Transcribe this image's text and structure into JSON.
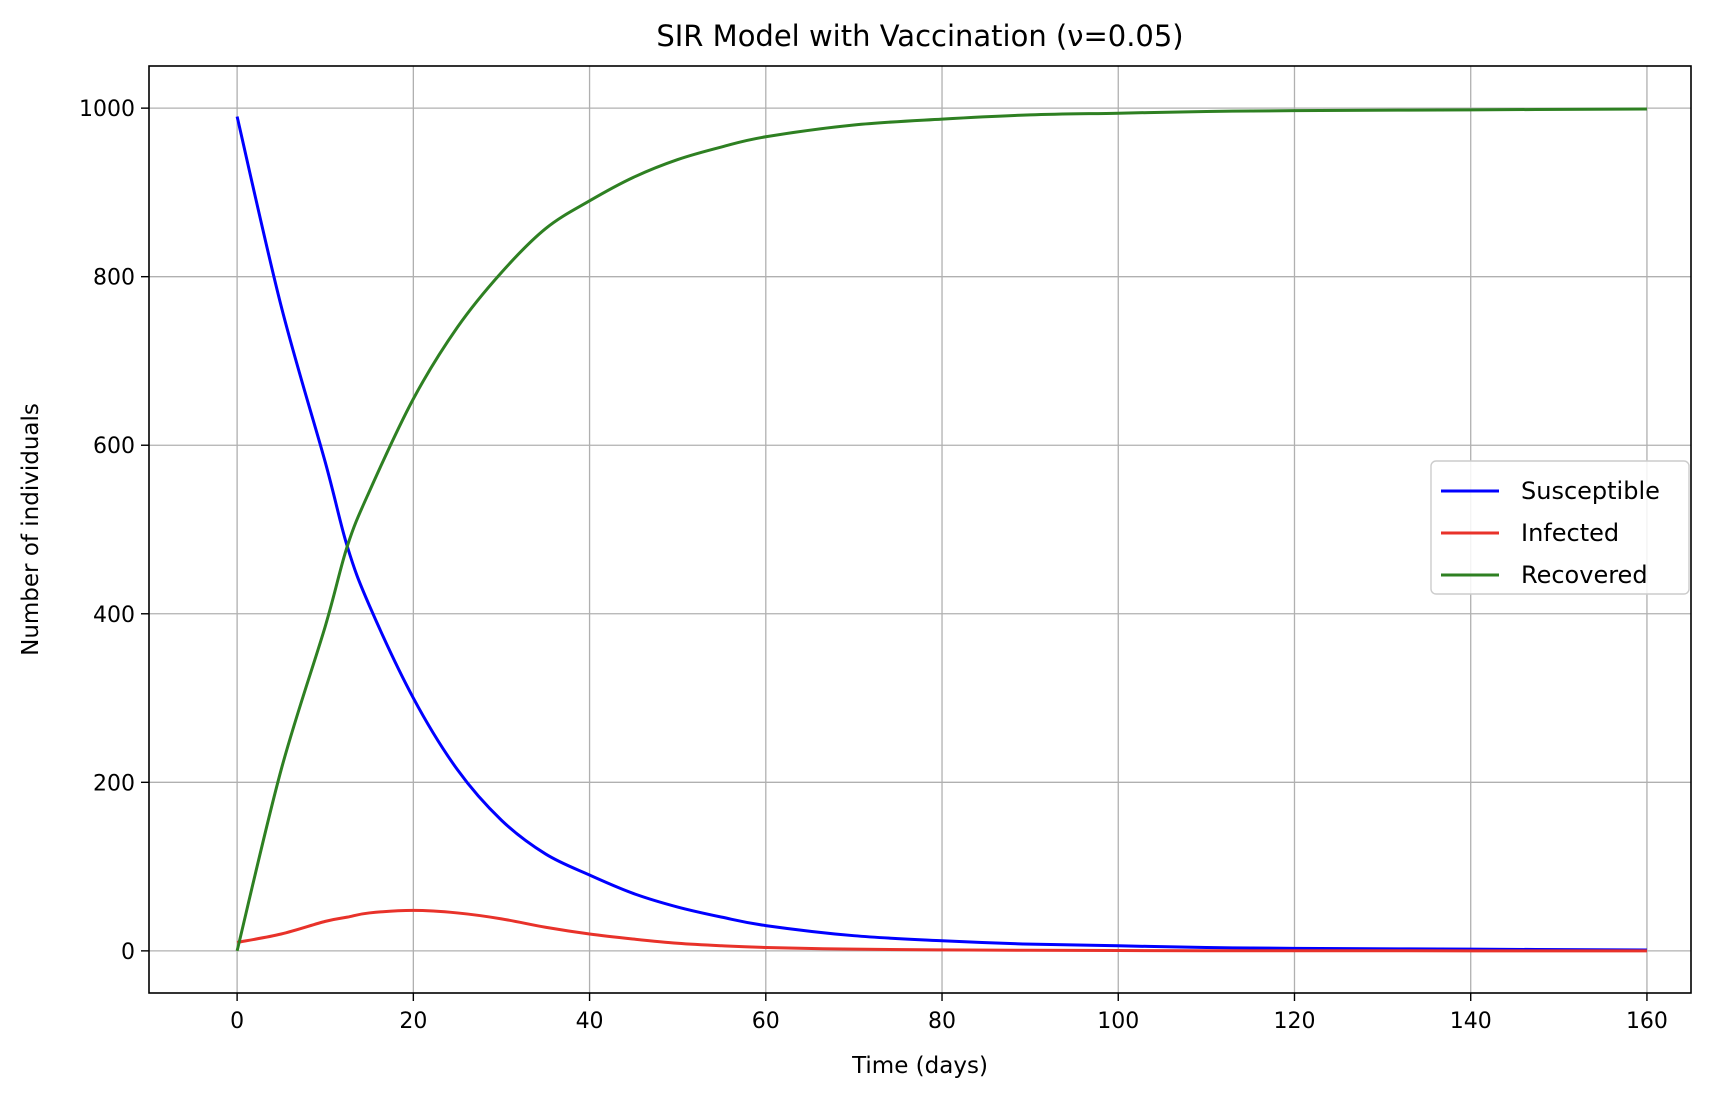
{
  "chart_data": {
    "type": "line",
    "title": "SIR Model with Vaccination (ν=0.05)",
    "xlabel": "Time (days)",
    "ylabel": "Number of individuals",
    "xlim": [
      -10,
      165
    ],
    "ylim": [
      -50,
      1050
    ],
    "xticks": [
      0,
      20,
      40,
      60,
      80,
      100,
      120,
      140,
      160
    ],
    "yticks": [
      0,
      200,
      400,
      600,
      800,
      1000
    ],
    "grid": true,
    "legend_position": "center-right",
    "x": [
      0,
      5,
      10,
      12.5,
      15,
      20,
      25,
      30,
      35,
      40,
      45,
      50,
      55,
      60,
      70,
      80,
      90,
      100,
      110,
      120,
      140,
      160
    ],
    "series": [
      {
        "name": "Susceptible",
        "color": "#0000ff",
        "values": [
          990,
          765,
          580,
          480,
          410,
          300,
          215,
          155,
          115,
          90,
          68,
          52,
          40,
          30,
          18,
          12,
          8,
          6,
          4,
          3,
          2,
          1
        ]
      },
      {
        "name": "Infected",
        "color": "#e8322a",
        "values": [
          10,
          20,
          35,
          40,
          45,
          48,
          45,
          38,
          28,
          20,
          14,
          9,
          6,
          4,
          2,
          1.2,
          0.7,
          0.4,
          0.2,
          0.1,
          0.05,
          0.02
        ]
      },
      {
        "name": "Recovered",
        "color": "#2e8022",
        "values": [
          0,
          215,
          385,
          480,
          545,
          655,
          740,
          805,
          857,
          890,
          918,
          939,
          954,
          966,
          980,
          987,
          992,
          994,
          996,
          997,
          998,
          999
        ]
      }
    ]
  }
}
